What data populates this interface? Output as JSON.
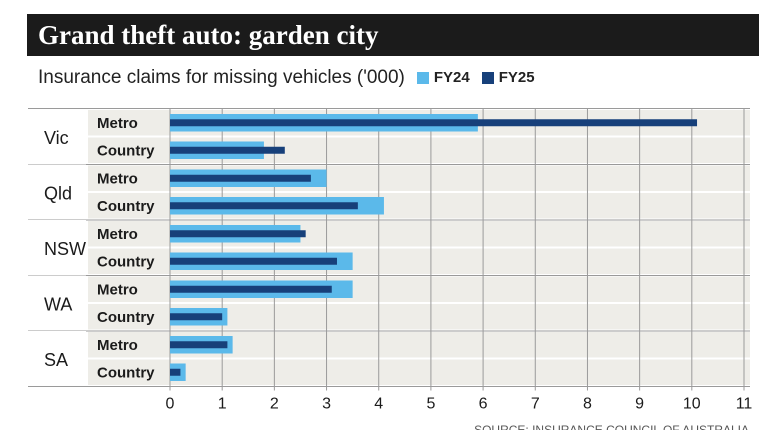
{
  "header": {
    "title": "Grand theft auto: garden city",
    "subtitle": "Insurance claims for missing vehicles ('000)"
  },
  "legend": [
    {
      "label": "FY24",
      "color": "#5bb9ea"
    },
    {
      "label": "FY25",
      "color": "#17407a"
    }
  ],
  "footer": {
    "source": "SOURCE: INSURANCE COUNCIL OF AUSTRALIA"
  },
  "chart_data": {
    "type": "bar",
    "orientation": "horizontal",
    "title": "Grand theft auto: garden city",
    "subtitle": "Insurance claims for missing vehicles ('000)",
    "xlabel": "",
    "ylabel": "",
    "xlim": [
      0,
      11
    ],
    "xticks": [
      0,
      1,
      2,
      3,
      4,
      5,
      6,
      7,
      8,
      9,
      10,
      11
    ],
    "grid": true,
    "legend_position": "top",
    "groups": [
      {
        "state": "Vic",
        "categories": [
          "Metro",
          "Country"
        ]
      },
      {
        "state": "Qld",
        "categories": [
          "Metro",
          "Country"
        ]
      },
      {
        "state": "NSW",
        "categories": [
          "Metro",
          "Country"
        ]
      },
      {
        "state": "WA",
        "categories": [
          "Metro",
          "Country"
        ]
      },
      {
        "state": "SA",
        "categories": [
          "Metro",
          "Country"
        ]
      }
    ],
    "series": [
      {
        "name": "FY24",
        "color": "#5bb9ea",
        "values": [
          5.9,
          1.8,
          3.0,
          4.1,
          2.5,
          3.5,
          3.5,
          1.1,
          1.2,
          0.3
        ]
      },
      {
        "name": "FY25",
        "color": "#17407a",
        "values": [
          10.1,
          2.2,
          2.7,
          3.6,
          2.6,
          3.2,
          3.1,
          1.0,
          1.1,
          0.2
        ]
      }
    ],
    "source": "SOURCE: INSURANCE COUNCIL OF AUSTRALIA"
  }
}
